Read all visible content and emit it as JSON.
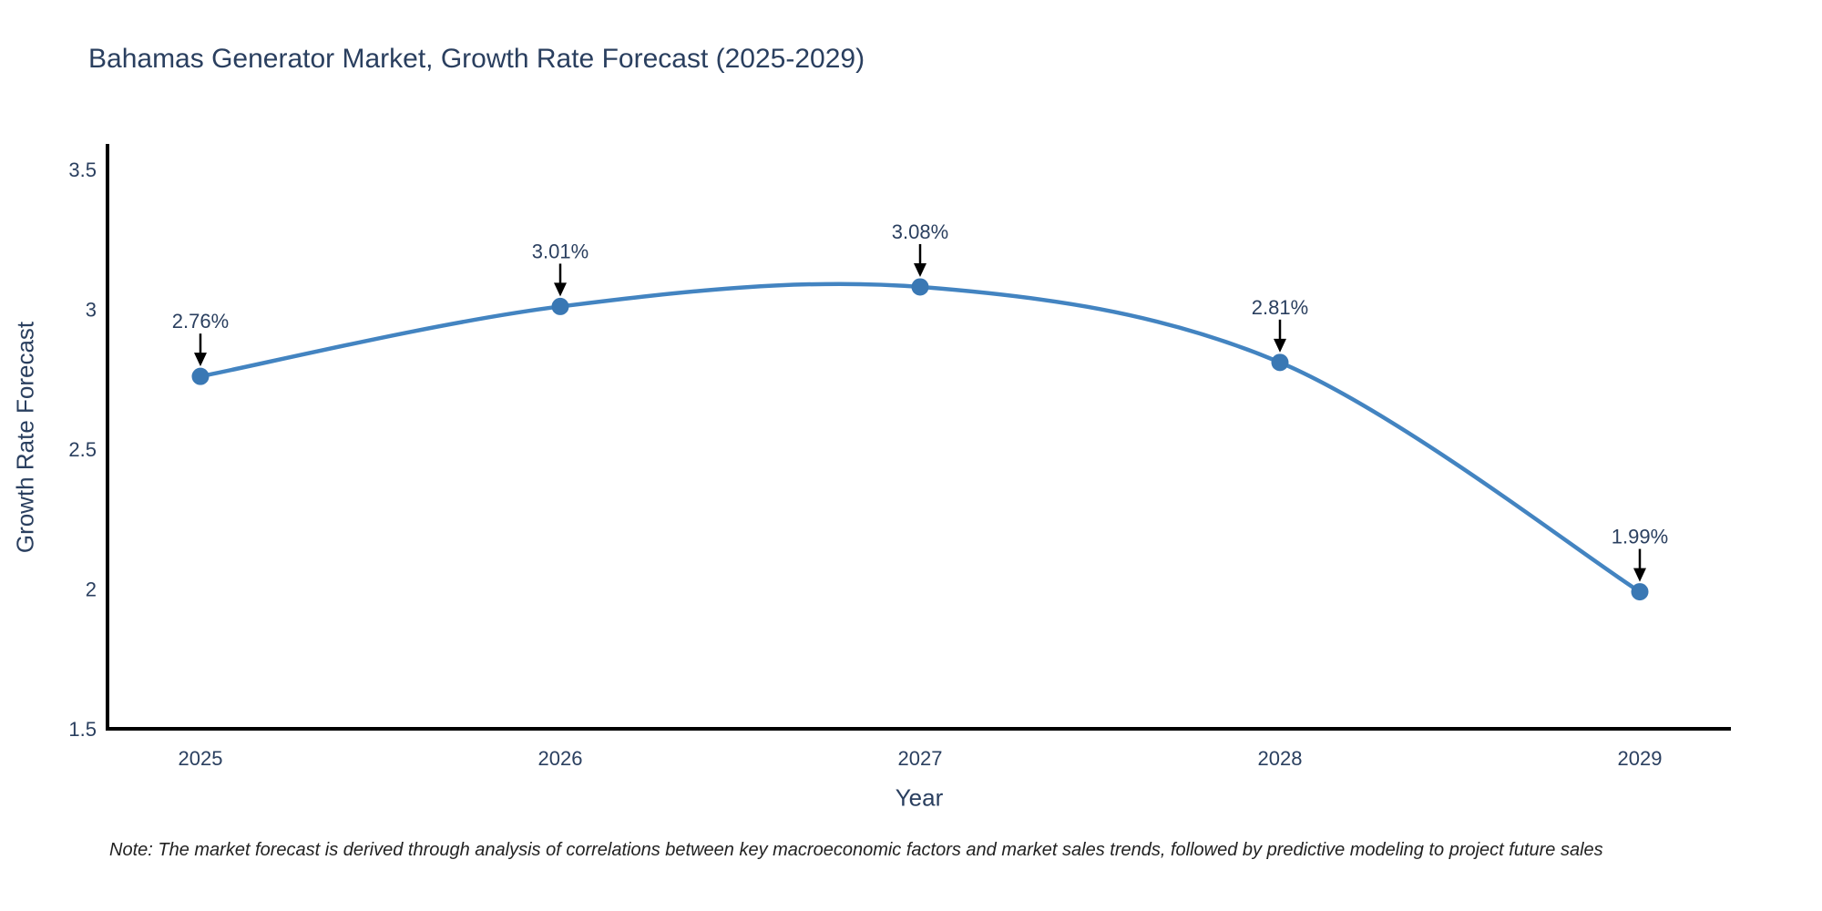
{
  "page": {
    "background": "#ffffff"
  },
  "chart_data": {
    "type": "line",
    "title": "Bahamas Generator Market, Growth Rate Forecast (2025-2029)",
    "xlabel": "Year",
    "ylabel": "Growth Rate Forecast",
    "categories": [
      "2025",
      "2026",
      "2027",
      "2028",
      "2029"
    ],
    "values": [
      2.76,
      3.01,
      3.08,
      2.81,
      1.99
    ],
    "point_labels": [
      "2.76%",
      "3.01%",
      "3.08%",
      "2.81%",
      "1.99%"
    ],
    "y_ticks": [
      1.5,
      2,
      2.5,
      3,
      3.5
    ],
    "y_tick_labels": [
      "1.5",
      "2",
      "2.5",
      "3",
      "3.5"
    ],
    "ylim": [
      1.5,
      3.58
    ],
    "line_shape": "spline",
    "grid": false,
    "legend": "none",
    "colors": {
      "line": "#4384c1",
      "marker": "#3a78b4",
      "axis": "#000000",
      "text": "#2a3f5f",
      "annotation_arrow": "#000000"
    }
  },
  "note": {
    "text": "Note: The market forecast is derived through analysis of correlations between key macroeconomic factors and market sales trends, followed by predictive modeling to project future sales"
  }
}
